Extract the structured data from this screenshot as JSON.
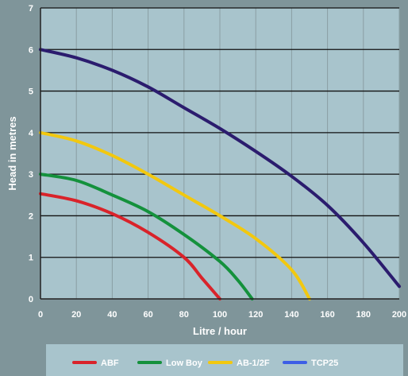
{
  "chart_data": {
    "type": "line",
    "xlabel": "Litre / hour",
    "ylabel": "Head in metres",
    "xlim": [
      0,
      200
    ],
    "ylim": [
      0,
      7
    ],
    "x_ticks": [
      0,
      20,
      40,
      60,
      80,
      100,
      120,
      140,
      160,
      180,
      200
    ],
    "y_ticks": [
      0,
      1,
      2,
      3,
      4,
      5,
      6,
      7
    ],
    "grid": true,
    "plot_background": "#a8c4cc",
    "legend_position": "bottom",
    "legend_background": "#a8c4cc",
    "series": [
      {
        "name": "ABF",
        "color": "#d9232a",
        "points": [
          [
            0,
            2.53
          ],
          [
            20,
            2.36
          ],
          [
            40,
            2.05
          ],
          [
            60,
            1.6
          ],
          [
            80,
            1.0
          ],
          [
            90,
            0.5
          ],
          [
            100,
            0
          ]
        ]
      },
      {
        "name": "Low Boy",
        "color": "#14913c",
        "points": [
          [
            0,
            3.0
          ],
          [
            20,
            2.85
          ],
          [
            40,
            2.5
          ],
          [
            60,
            2.1
          ],
          [
            80,
            1.55
          ],
          [
            100,
            0.9
          ],
          [
            110,
            0.45
          ],
          [
            118,
            0
          ]
        ]
      },
      {
        "name": "AB-1/2F",
        "color": "#f2c80f",
        "points": [
          [
            0,
            4.0
          ],
          [
            20,
            3.8
          ],
          [
            40,
            3.45
          ],
          [
            60,
            3.0
          ],
          [
            80,
            2.5
          ],
          [
            100,
            2.0
          ],
          [
            120,
            1.45
          ],
          [
            140,
            0.7
          ],
          [
            150,
            0
          ]
        ]
      },
      {
        "name": "TCP25",
        "color": "#2b1c6e",
        "legend_color": "#3d5ee6",
        "points": [
          [
            0,
            6.0
          ],
          [
            20,
            5.8
          ],
          [
            40,
            5.5
          ],
          [
            60,
            5.1
          ],
          [
            80,
            4.6
          ],
          [
            100,
            4.1
          ],
          [
            120,
            3.55
          ],
          [
            140,
            2.95
          ],
          [
            160,
            2.25
          ],
          [
            180,
            1.35
          ],
          [
            200,
            0.3
          ]
        ]
      }
    ]
  }
}
